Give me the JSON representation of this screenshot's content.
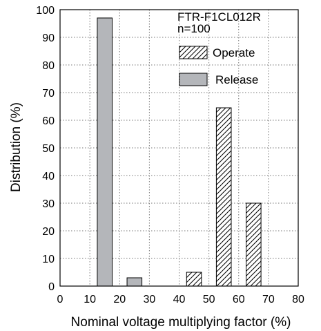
{
  "chart_data": {
    "type": "bar",
    "xlabel": "Nominal voltage multiplying factor (%)",
    "ylabel": "Distribution (%)",
    "xlim": [
      0,
      80
    ],
    "ylim": [
      0,
      100
    ],
    "xticks": [
      "0",
      "10",
      "20",
      "30",
      "40",
      "50",
      "60",
      "70",
      "80"
    ],
    "yticks": [
      "0",
      "10",
      "20",
      "30",
      "40",
      "50",
      "60",
      "70",
      "80",
      "90",
      "100"
    ],
    "grid": true,
    "bar_width": 5,
    "annotation": {
      "model": "FTR-F1CL012R",
      "sample": "n=100"
    },
    "legend_position": "top-right",
    "series": [
      {
        "name": "Operate",
        "style": "hatched",
        "color": "#ffffff",
        "points": [
          {
            "x": 45,
            "y": 5
          },
          {
            "x": 55,
            "y": 64.5
          },
          {
            "x": 65,
            "y": 30
          }
        ]
      },
      {
        "name": "Release",
        "style": "filled",
        "color": "#b4b6ba",
        "points": [
          {
            "x": 15,
            "y": 97
          },
          {
            "x": 25,
            "y": 3
          }
        ]
      }
    ]
  }
}
